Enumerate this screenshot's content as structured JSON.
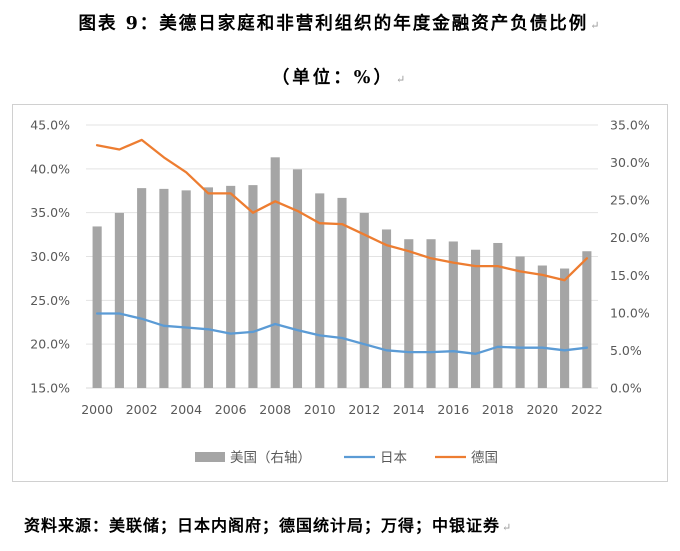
{
  "header": {
    "title": "图表 9：美德日家庭和非营利组织的年度金融资产负债比例",
    "subtitle": "（单位：%）"
  },
  "footer": {
    "source": "资料来源：美联储；日本内阁府；德国统计局；万得；中银证券"
  },
  "chart_data": {
    "type": "bar",
    "x": [
      "2000",
      "2001",
      "2002",
      "2003",
      "2004",
      "2005",
      "2006",
      "2007",
      "2008",
      "2009",
      "2010",
      "2011",
      "2012",
      "2013",
      "2014",
      "2015",
      "2016",
      "2017",
      "2018",
      "2019",
      "2020",
      "2021",
      "2022"
    ],
    "x_tick_labels": [
      "2000",
      "2002",
      "2004",
      "2006",
      "2008",
      "2010",
      "2012",
      "2014",
      "2016",
      "2018",
      "2020",
      "2022"
    ],
    "series": [
      {
        "name": "美国（右轴）",
        "type": "bar",
        "axis": "right",
        "color": "#a5a5a5",
        "values": [
          21.5,
          23.3,
          26.6,
          26.5,
          26.3,
          26.7,
          26.9,
          27.0,
          30.7,
          29.1,
          25.9,
          25.3,
          23.3,
          21.1,
          19.8,
          19.8,
          19.5,
          18.4,
          19.3,
          17.5,
          16.3,
          15.9,
          18.2
        ]
      },
      {
        "name": "日本",
        "type": "line",
        "axis": "left",
        "color": "#5b9bd5",
        "values": [
          23.5,
          23.5,
          22.9,
          22.1,
          21.9,
          21.7,
          21.2,
          21.4,
          22.3,
          21.6,
          21.0,
          20.7,
          20.0,
          19.3,
          19.1,
          19.1,
          19.2,
          18.9,
          19.7,
          19.6,
          19.6,
          19.3,
          19.6
        ]
      },
      {
        "name": "德国",
        "type": "line",
        "axis": "left",
        "color": "#ed7d31",
        "values": [
          42.7,
          42.2,
          43.3,
          41.3,
          39.6,
          37.2,
          37.2,
          35.0,
          36.3,
          35.2,
          33.8,
          33.7,
          32.5,
          31.3,
          30.6,
          29.8,
          29.3,
          28.9,
          28.9,
          28.3,
          27.9,
          27.3,
          29.8
        ]
      }
    ],
    "y_left": {
      "min": 15,
      "max": 45,
      "step": 5,
      "ticks": [
        "15.0%",
        "20.0%",
        "25.0%",
        "30.0%",
        "35.0%",
        "40.0%",
        "45.0%"
      ]
    },
    "y_right": {
      "min": 0,
      "max": 35,
      "step": 5,
      "ticks": [
        "0.0%",
        "5.0%",
        "10.0%",
        "15.0%",
        "20.0%",
        "25.0%",
        "30.0%",
        "35.0%"
      ]
    },
    "grid": true,
    "legend_position": "bottom",
    "legend": [
      "美国（右轴）",
      "日本",
      "德国"
    ]
  }
}
